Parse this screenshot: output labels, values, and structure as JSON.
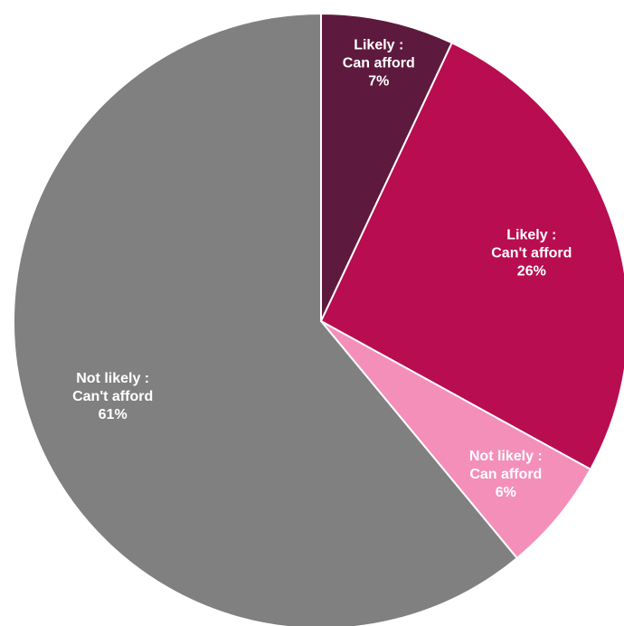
{
  "chart_data": {
    "type": "pie",
    "title": "",
    "slices": [
      {
        "label_lines": [
          "Likely :",
          "Can afford",
          "7%"
        ],
        "category": "Likely : Can afford",
        "value": 7,
        "color": "#5e1a3e"
      },
      {
        "label_lines": [
          "Likely :",
          "Can't afford",
          "26%"
        ],
        "category": "Likely : Can't afford",
        "value": 26,
        "color": "#b80d50"
      },
      {
        "label_lines": [
          "Not likely :",
          "Can afford",
          "6%"
        ],
        "category": "Not likely : Can afford",
        "value": 6,
        "color": "#f48fba"
      },
      {
        "label_lines": [
          "Not likely :",
          "Can't afford",
          "61%"
        ],
        "category": "Not likely : Can't afford",
        "value": 61,
        "color": "#808080"
      }
    ],
    "start_angle": "12 o'clock",
    "direction": "clockwise",
    "legend": "none"
  }
}
